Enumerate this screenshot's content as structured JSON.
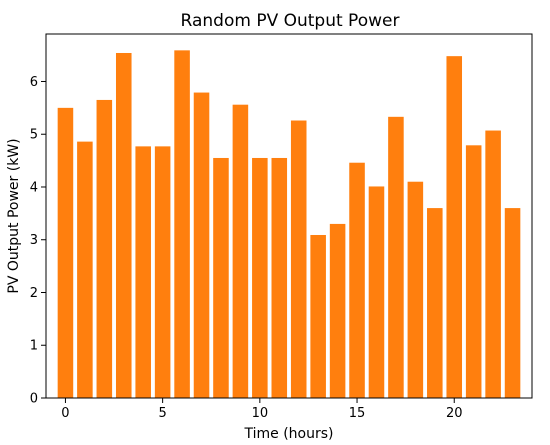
{
  "chart_data": {
    "type": "bar",
    "title": "Random PV Output Power",
    "xlabel": "Time (hours)",
    "ylabel": "PV Output Power (kW)",
    "x": [
      0,
      1,
      2,
      3,
      4,
      5,
      6,
      7,
      8,
      9,
      10,
      11,
      12,
      13,
      14,
      15,
      16,
      17,
      18,
      19,
      20,
      21,
      22,
      23
    ],
    "values": [
      5.5,
      4.86,
      5.65,
      6.54,
      4.77,
      4.77,
      6.59,
      5.79,
      4.55,
      5.56,
      4.55,
      4.55,
      5.26,
      3.09,
      3.3,
      4.46,
      4.01,
      5.33,
      4.1,
      3.6,
      6.48,
      4.79,
      5.07,
      3.6
    ],
    "xlim": [
      -1.0,
      24.0
    ],
    "ylim": [
      0,
      6.9
    ],
    "xticks": [
      0,
      5,
      10,
      15,
      20
    ],
    "yticks": [
      0,
      1,
      2,
      3,
      4,
      5,
      6
    ],
    "bar_color": "#ff7f0e",
    "grid": false
  }
}
